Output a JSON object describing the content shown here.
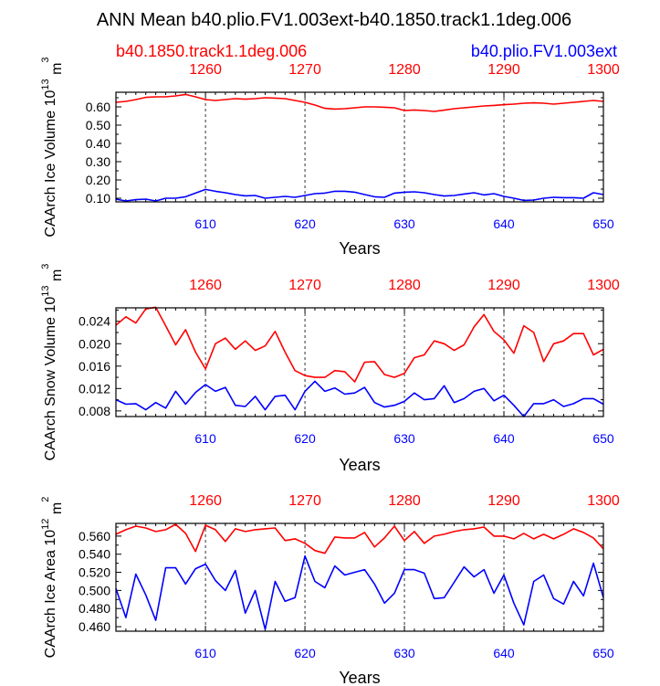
{
  "title": "ANN Mean b40.plio.FV1.003ext-b40.1850.track1.1deg.006",
  "legend": {
    "left": {
      "label": "b40.1850.track1.1deg.006",
      "color": "#ff0000"
    },
    "right": {
      "label": "b40.plio.FV1.003ext",
      "color": "#0000ff"
    }
  },
  "colors": {
    "red": "#ff0000",
    "blue": "#0000ff",
    "axis": "#000000",
    "grid": "#000000"
  },
  "chart_data": [
    {
      "type": "line",
      "ylabel": "CAArch Ice Volume 10^13 m^3",
      "ylabel_main": "CAArch Ice Volume 10",
      "ylabel_exp": "13",
      "ylabel_unit": "m",
      "ylabel_unit_exp": "3",
      "xlabel": "Years",
      "xlim": [
        601,
        650
      ],
      "ylim": [
        0.08,
        0.68
      ],
      "yticks": [
        0.1,
        0.2,
        0.3,
        0.4,
        0.5,
        0.6
      ],
      "ytick_labels": [
        "0.10",
        "0.20",
        "0.30",
        "0.40",
        "0.50",
        "0.60"
      ],
      "bottom_ticks": [
        610,
        620,
        630,
        640,
        650
      ],
      "bottom_tick_labels": [
        "610",
        "620",
        "630",
        "640",
        "650"
      ],
      "top_ticks": [
        1260,
        1270,
        1280,
        1290,
        1300
      ],
      "top_tick_labels": [
        "1260",
        "1270",
        "1280",
        "1290",
        "1300"
      ],
      "top_offset": 650,
      "grid": "dashed vertical at labeled ticks",
      "x": [
        601,
        602,
        603,
        604,
        605,
        606,
        607,
        608,
        609,
        610,
        611,
        612,
        613,
        614,
        615,
        616,
        617,
        618,
        619,
        620,
        621,
        622,
        623,
        624,
        625,
        626,
        627,
        628,
        629,
        630,
        631,
        632,
        633,
        634,
        635,
        636,
        637,
        638,
        639,
        640,
        641,
        642,
        643,
        644,
        645,
        646,
        647,
        648,
        649,
        650
      ],
      "series": [
        {
          "name": "b40.1850.track1.1deg.006",
          "color": "#ff0000",
          "values": [
            0.625,
            0.63,
            0.64,
            0.652,
            0.655,
            0.655,
            0.66,
            0.668,
            0.655,
            0.64,
            0.635,
            0.64,
            0.645,
            0.642,
            0.645,
            0.65,
            0.648,
            0.645,
            0.635,
            0.625,
            0.61,
            0.592,
            0.588,
            0.59,
            0.595,
            0.6,
            0.6,
            0.598,
            0.595,
            0.58,
            0.583,
            0.58,
            0.575,
            0.582,
            0.59,
            0.595,
            0.6,
            0.605,
            0.608,
            0.612,
            0.615,
            0.62,
            0.622,
            0.62,
            0.615,
            0.62,
            0.625,
            0.63,
            0.635,
            0.63
          ]
        },
        {
          "name": "b40.plio.FV1.003ext",
          "color": "#0000ff",
          "values": [
            0.095,
            0.085,
            0.092,
            0.095,
            0.085,
            0.1,
            0.1,
            0.108,
            0.128,
            0.148,
            0.138,
            0.13,
            0.12,
            0.113,
            0.115,
            0.1,
            0.105,
            0.11,
            0.105,
            0.115,
            0.125,
            0.128,
            0.138,
            0.138,
            0.133,
            0.12,
            0.108,
            0.105,
            0.128,
            0.133,
            0.135,
            0.13,
            0.12,
            0.112,
            0.115,
            0.123,
            0.13,
            0.118,
            0.125,
            0.11,
            0.1,
            0.088,
            0.09,
            0.1,
            0.105,
            0.103,
            0.103,
            0.1,
            0.13,
            0.12
          ]
        }
      ]
    },
    {
      "type": "line",
      "ylabel": "CAArch Snow Volume 10^13 m^3",
      "ylabel_main": "CAArch Snow Volume 10",
      "ylabel_exp": "13",
      "ylabel_unit": "m",
      "ylabel_unit_exp": "3",
      "xlabel": "Years",
      "xlim": [
        601,
        650
      ],
      "ylim": [
        0.007,
        0.0264
      ],
      "yticks": [
        0.008,
        0.012,
        0.016,
        0.02,
        0.024
      ],
      "ytick_labels": [
        "0.008",
        "0.012",
        "0.016",
        "0.020",
        "0.024"
      ],
      "bottom_ticks": [
        610,
        620,
        630,
        640,
        650
      ],
      "bottom_tick_labels": [
        "610",
        "620",
        "630",
        "640",
        "650"
      ],
      "top_ticks": [
        1260,
        1270,
        1280,
        1290,
        1300
      ],
      "top_tick_labels": [
        "1260",
        "1270",
        "1280",
        "1290",
        "1300"
      ],
      "top_offset": 650,
      "grid": "dashed vertical at labeled ticks",
      "x": [
        601,
        602,
        603,
        604,
        605,
        606,
        607,
        608,
        609,
        610,
        611,
        612,
        613,
        614,
        615,
        616,
        617,
        618,
        619,
        620,
        621,
        622,
        623,
        624,
        625,
        626,
        627,
        628,
        629,
        630,
        631,
        632,
        633,
        634,
        635,
        636,
        637,
        638,
        639,
        640,
        641,
        642,
        643,
        644,
        645,
        646,
        647,
        648,
        649,
        650
      ],
      "series": [
        {
          "name": "b40.1850.track1.1deg.006",
          "color": "#ff0000",
          "values": [
            0.0233,
            0.0248,
            0.0237,
            0.0262,
            0.0265,
            0.0232,
            0.0198,
            0.0225,
            0.0185,
            0.0155,
            0.02,
            0.021,
            0.019,
            0.0205,
            0.0188,
            0.0196,
            0.0222,
            0.0185,
            0.0152,
            0.0143,
            0.014,
            0.014,
            0.0152,
            0.015,
            0.0132,
            0.0167,
            0.0168,
            0.0145,
            0.014,
            0.0147,
            0.0175,
            0.018,
            0.0205,
            0.02,
            0.0188,
            0.0198,
            0.023,
            0.0252,
            0.0222,
            0.0207,
            0.0183,
            0.0232,
            0.022,
            0.0168,
            0.02,
            0.0205,
            0.0218,
            0.0218,
            0.018,
            0.019
          ]
        },
        {
          "name": "b40.plio.FV1.003ext",
          "color": "#0000ff",
          "values": [
            0.01,
            0.0092,
            0.0093,
            0.0082,
            0.0095,
            0.0085,
            0.0115,
            0.0092,
            0.0113,
            0.0127,
            0.0115,
            0.0122,
            0.009,
            0.0088,
            0.0106,
            0.0082,
            0.0106,
            0.0108,
            0.0082,
            0.0115,
            0.0133,
            0.0115,
            0.0121,
            0.011,
            0.0112,
            0.0122,
            0.0095,
            0.0087,
            0.009,
            0.0097,
            0.0112,
            0.01,
            0.0102,
            0.0125,
            0.0095,
            0.0102,
            0.0115,
            0.012,
            0.0098,
            0.0108,
            0.009,
            0.007,
            0.0093,
            0.0093,
            0.01,
            0.0088,
            0.0093,
            0.0102,
            0.0102,
            0.0092
          ]
        }
      ]
    },
    {
      "type": "line",
      "ylabel": "CAArch Ice Area 10^12 m^2",
      "ylabel_main": "CAArch Ice Area 10",
      "ylabel_exp": "12",
      "ylabel_unit": "m",
      "ylabel_unit_exp": "2",
      "xlabel": "Years",
      "xlim": [
        601,
        650
      ],
      "ylim": [
        0.455,
        0.574
      ],
      "yticks": [
        0.46,
        0.48,
        0.5,
        0.52,
        0.54,
        0.56
      ],
      "ytick_labels": [
        "0.460",
        "0.480",
        "0.500",
        "0.520",
        "0.540",
        "0.560"
      ],
      "bottom_ticks": [
        610,
        620,
        630,
        640,
        650
      ],
      "bottom_tick_labels": [
        "610",
        "620",
        "630",
        "640",
        "650"
      ],
      "top_ticks": [
        1260,
        1270,
        1280,
        1290,
        1300
      ],
      "top_tick_labels": [
        "1260",
        "1270",
        "1280",
        "1290",
        "1300"
      ],
      "top_offset": 650,
      "grid": "dashed vertical at labeled ticks",
      "x": [
        601,
        602,
        603,
        604,
        605,
        606,
        607,
        608,
        609,
        610,
        611,
        612,
        613,
        614,
        615,
        616,
        617,
        618,
        619,
        620,
        621,
        622,
        623,
        624,
        625,
        626,
        627,
        628,
        629,
        630,
        631,
        632,
        633,
        634,
        635,
        636,
        637,
        638,
        639,
        640,
        641,
        642,
        643,
        644,
        645,
        646,
        647,
        648,
        649,
        650
      ],
      "series": [
        {
          "name": "b40.1850.track1.1deg.006",
          "color": "#ff0000",
          "values": [
            0.562,
            0.567,
            0.571,
            0.569,
            0.565,
            0.567,
            0.573,
            0.563,
            0.543,
            0.572,
            0.567,
            0.554,
            0.568,
            0.565,
            0.567,
            0.568,
            0.569,
            0.555,
            0.557,
            0.552,
            0.544,
            0.541,
            0.559,
            0.558,
            0.558,
            0.564,
            0.548,
            0.558,
            0.571,
            0.555,
            0.565,
            0.552,
            0.56,
            0.562,
            0.565,
            0.567,
            0.568,
            0.57,
            0.56,
            0.56,
            0.557,
            0.563,
            0.557,
            0.562,
            0.557,
            0.562,
            0.568,
            0.564,
            0.558,
            0.546
          ]
        },
        {
          "name": "b40.plio.FV1.003ext",
          "color": "#0000ff",
          "values": [
            0.502,
            0.47,
            0.518,
            0.495,
            0.467,
            0.525,
            0.525,
            0.507,
            0.524,
            0.529,
            0.511,
            0.5,
            0.522,
            0.475,
            0.5,
            0.457,
            0.51,
            0.488,
            0.492,
            0.538,
            0.51,
            0.503,
            0.527,
            0.517,
            0.52,
            0.523,
            0.507,
            0.486,
            0.497,
            0.523,
            0.523,
            0.519,
            0.491,
            0.492,
            0.509,
            0.526,
            0.515,
            0.523,
            0.497,
            0.517,
            0.486,
            0.462,
            0.51,
            0.517,
            0.491,
            0.485,
            0.51,
            0.494,
            0.53,
            0.492
          ]
        }
      ]
    }
  ]
}
